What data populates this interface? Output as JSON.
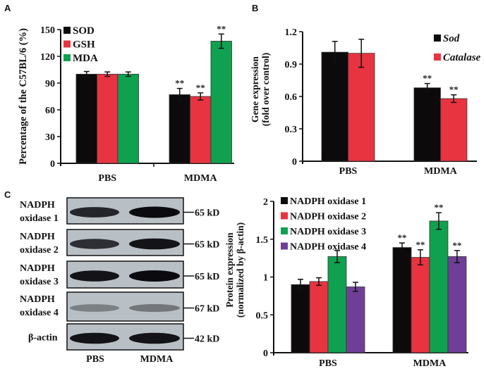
{
  "chart_data": [
    {
      "panel": "A",
      "type": "bar",
      "categories": [
        "PBS",
        "MDMA"
      ],
      "ylabel": "Percentage of the C57BL/6 (%)",
      "ylim": [
        0,
        150
      ],
      "yticks": [
        "0",
        "30",
        "60",
        "90",
        "120",
        "150"
      ],
      "legend_position": "top-left",
      "significance": "**",
      "series": [
        {
          "name": "SOD",
          "color": "#0d0a0c",
          "values": [
            100,
            77
          ],
          "errors": [
            3,
            7
          ],
          "sig": [
            false,
            true
          ]
        },
        {
          "name": "GSH",
          "color": "#e83341",
          "values": [
            100,
            75
          ],
          "errors": [
            2.5,
            4
          ],
          "sig": [
            false,
            true
          ]
        },
        {
          "name": "MDA",
          "color": "#10a150",
          "values": [
            100,
            137
          ],
          "errors": [
            2.5,
            8
          ],
          "sig": [
            false,
            true
          ]
        }
      ]
    },
    {
      "panel": "B",
      "type": "bar",
      "categories": [
        "PBS",
        "MDMA"
      ],
      "ylabel": [
        "Gene expression",
        "(fold over control)"
      ],
      "ylim": [
        0,
        1.2
      ],
      "yticks": [
        "0",
        "0.3",
        "0.6",
        "0.9",
        "1.2"
      ],
      "legend_position": "top-right",
      "significance": "**",
      "series": [
        {
          "name": "Sod",
          "color": "#0d0a0c",
          "values": [
            1.01,
            0.68
          ],
          "errors": [
            0.1,
            0.04
          ],
          "sig": [
            false,
            true
          ]
        },
        {
          "name": "Catalase",
          "color": "#e83341",
          "values": [
            1.0,
            0.58
          ],
          "errors": [
            0.13,
            0.035
          ],
          "sig": [
            false,
            true
          ]
        }
      ]
    },
    {
      "panel": "C",
      "type": "bar",
      "categories": [
        "PBS",
        "MDMA"
      ],
      "ylabel": [
        "Protein expression",
        "(normalized by β-actin)"
      ],
      "ylim": [
        0,
        2
      ],
      "yticks": [
        "0",
        "0.5",
        "1",
        "1.5",
        "2"
      ],
      "legend_position": "top-left",
      "significance": "**",
      "series": [
        {
          "name": "NADPH oxidase 1",
          "color": "#0d0a0c",
          "values": [
            0.9,
            1.39
          ],
          "errors": [
            0.07,
            0.06
          ],
          "sig": [
            false,
            true
          ]
        },
        {
          "name": "NADPH oxidase 2",
          "color": "#e83341",
          "values": [
            0.94,
            1.26
          ],
          "errors": [
            0.05,
            0.1
          ],
          "sig": [
            false,
            true
          ]
        },
        {
          "name": "NADPH oxidase 3",
          "color": "#10a150",
          "values": [
            1.27,
            1.74
          ],
          "errors": [
            0.08,
            0.11
          ],
          "sig": [
            false,
            true
          ]
        },
        {
          "name": "NADPH oxidase 4",
          "color": "#6f3f97",
          "values": [
            0.87,
            1.27
          ],
          "errors": [
            0.06,
            0.08
          ],
          "sig": [
            false,
            true
          ]
        }
      ]
    }
  ],
  "panel_labels": [
    "A",
    "B",
    "C"
  ],
  "blot": {
    "lanes": [
      "PBS",
      "MDMA"
    ],
    "rows": [
      {
        "label": [
          "NADPH",
          "oxidase 1"
        ],
        "size": "65 kD",
        "intensity": [
          0.85,
          1.0
        ]
      },
      {
        "label": [
          "NADPH",
          "oxidase 2"
        ],
        "size": "65 kD",
        "intensity": [
          0.8,
          0.95
        ]
      },
      {
        "label": [
          "NADPH",
          "oxidase 3"
        ],
        "size": "65 kD",
        "intensity": [
          0.95,
          1.0
        ]
      },
      {
        "label": [
          "NADPH",
          "oxidase 4"
        ],
        "size": "67 kD",
        "intensity": [
          0.35,
          0.4
        ]
      },
      {
        "label": [
          "β-actin"
        ],
        "size": "42 kD",
        "intensity": [
          0.95,
          0.95
        ]
      }
    ]
  }
}
